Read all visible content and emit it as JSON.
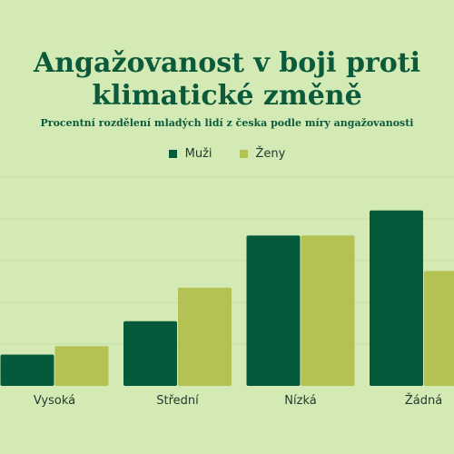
{
  "chart_data": {
    "type": "bar",
    "title": "Angažovanost v boji proti klimatické změně",
    "subtitle": "Procentní rozdělení mladých lidí z česka podle míry angažovanosti",
    "categories": [
      "Vysoká",
      "Střední",
      "Nízká",
      "Žádná"
    ],
    "series": [
      {
        "name": "Muži",
        "values": [
          7.5,
          15.5,
          36,
          42
        ],
        "color": "#065a3c"
      },
      {
        "name": "Ženy",
        "values": [
          9.5,
          23.5,
          36,
          27.5
        ],
        "color": "#b3c252"
      }
    ],
    "ylim": [
      0,
      50
    ],
    "grid": true,
    "legend": "top-center",
    "xlabel": "",
    "ylabel": ""
  }
}
